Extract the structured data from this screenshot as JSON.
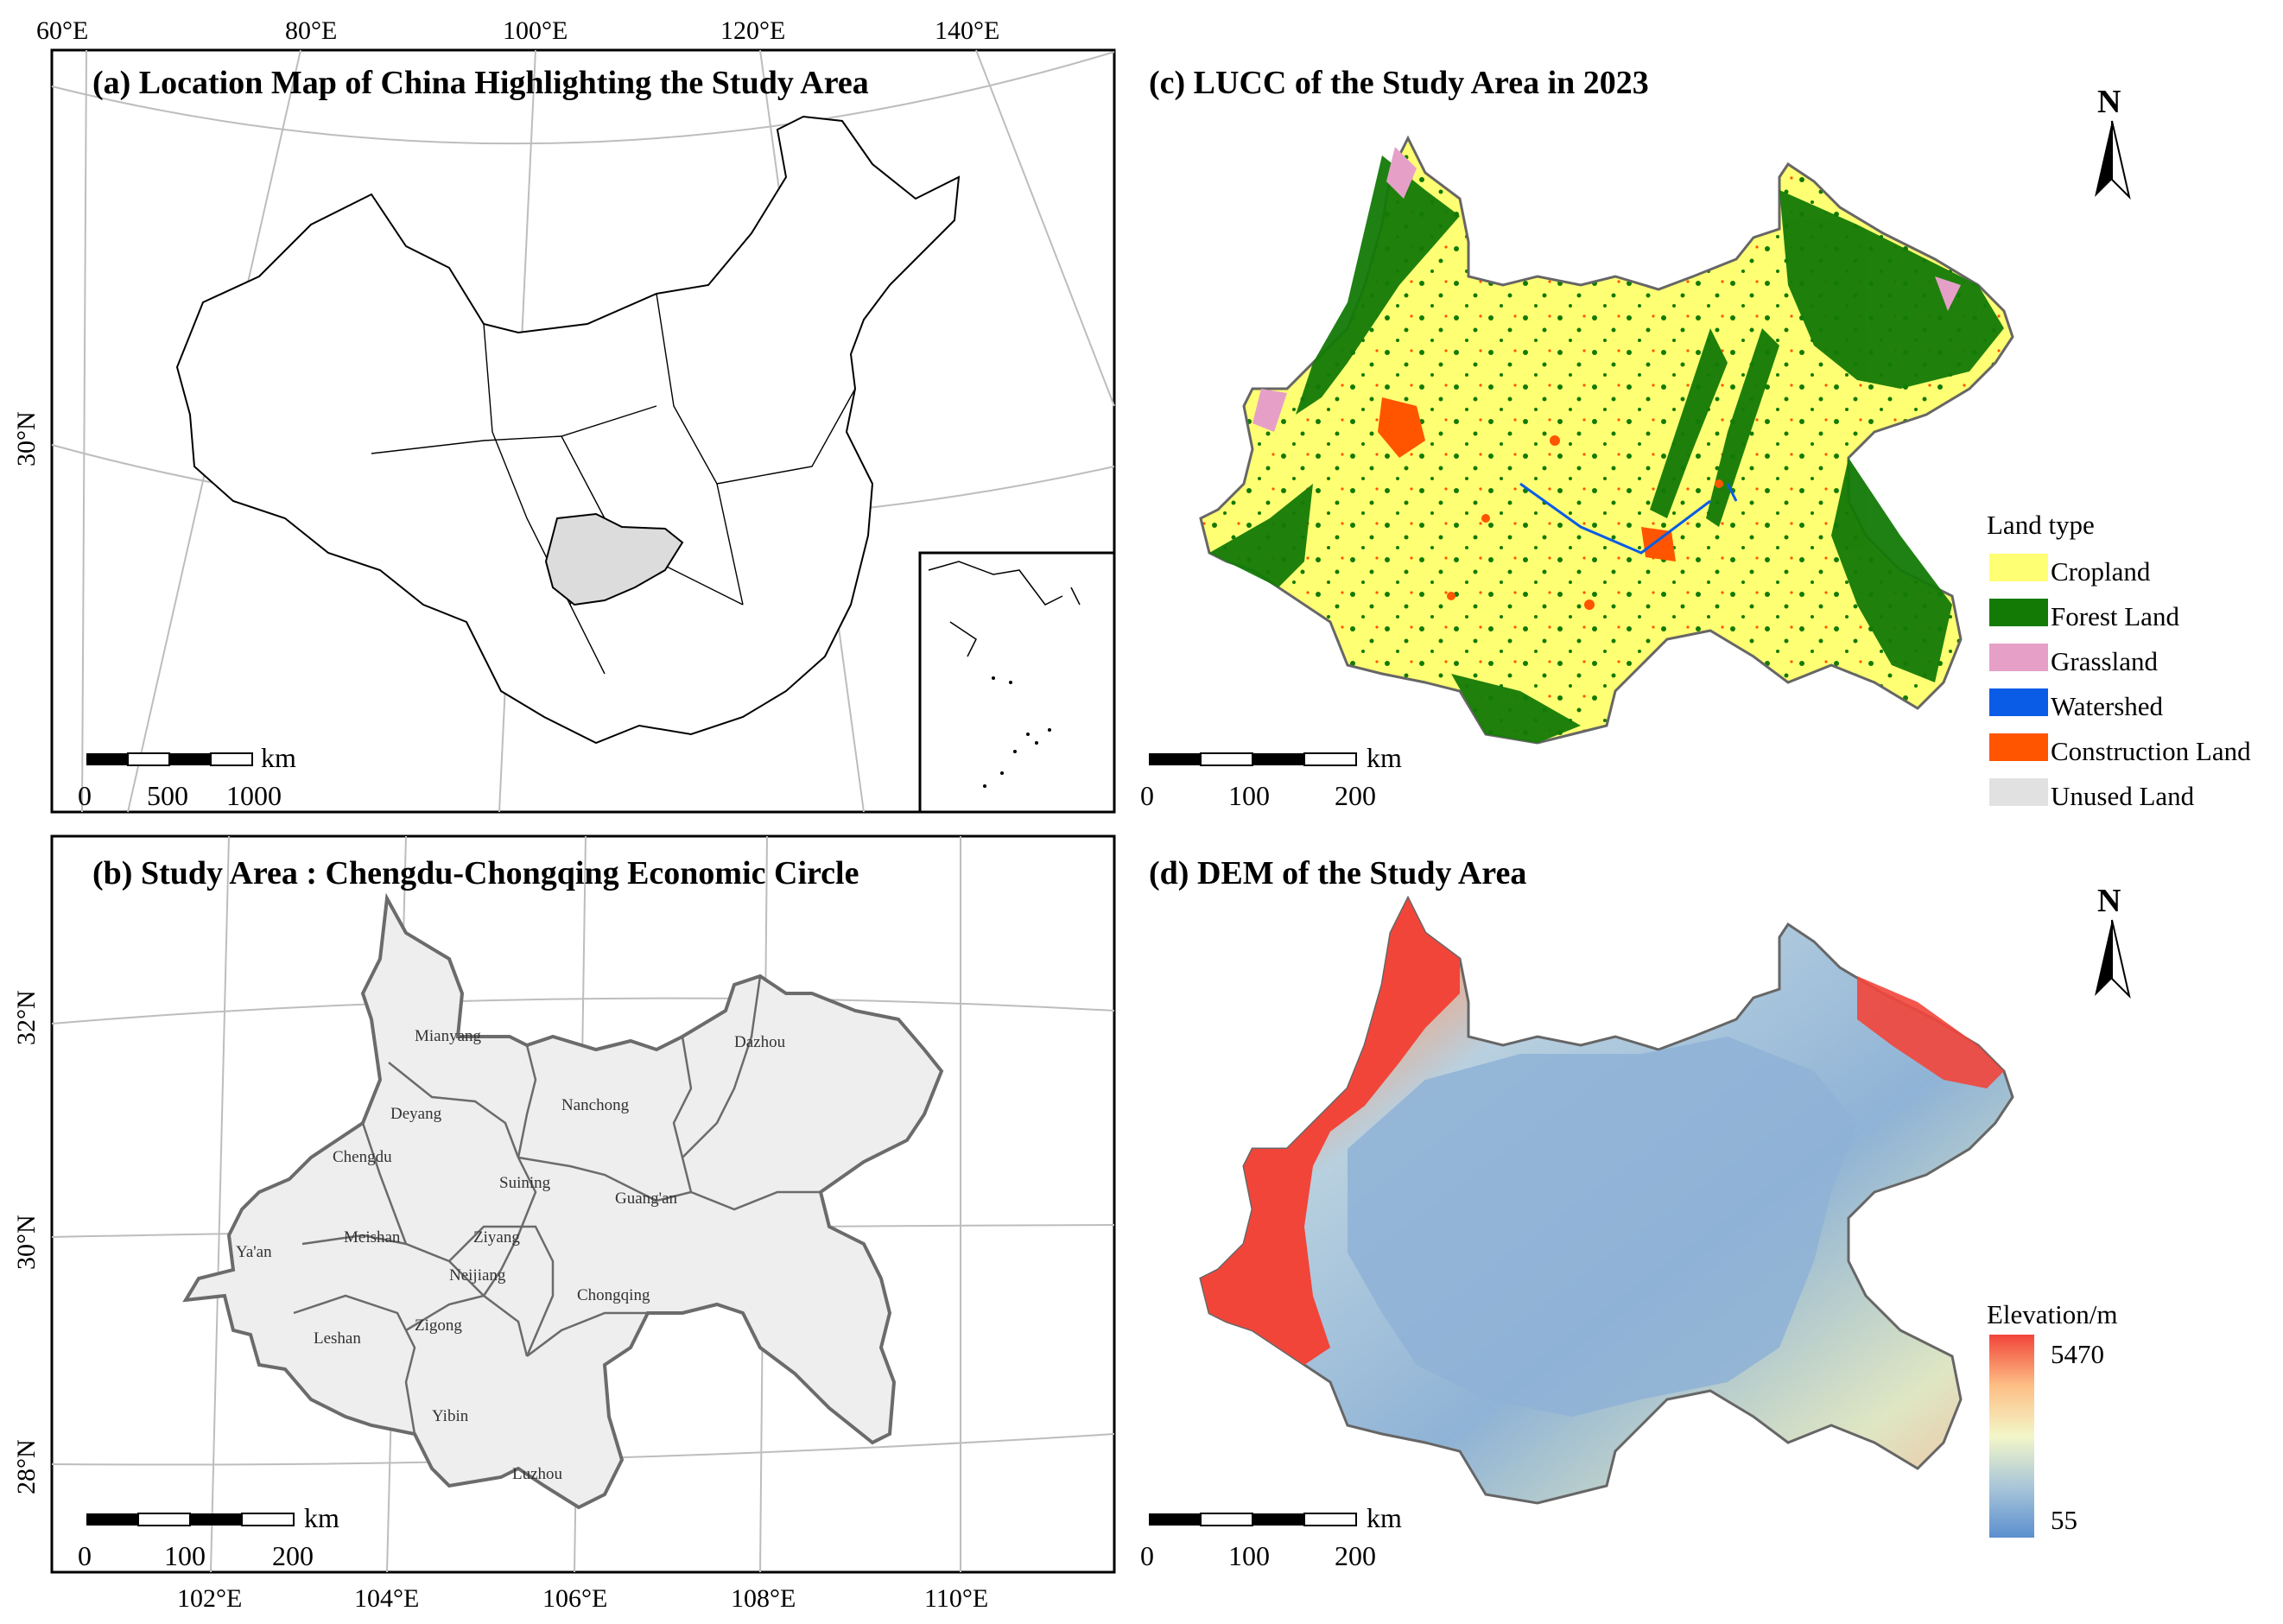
{
  "panels": {
    "a": {
      "title": "(a) Location Map of China Highlighting the Study Area",
      "lon_ticks": [
        "60°E",
        "80°E",
        "100°E",
        "120°E",
        "140°E"
      ],
      "lat_ticks": [
        "30°N"
      ],
      "scale_unit": "km",
      "scale_labels": [
        "0",
        "500",
        "1000"
      ]
    },
    "b": {
      "title": "(b) Study Area : Chengdu-Chongqing Economic Circle",
      "lon_ticks": [
        "102°E",
        "104°E",
        "106°E",
        "108°E",
        "110°E"
      ],
      "lat_ticks": [
        "32°N",
        "30°N",
        "28°N"
      ],
      "scale_unit": "km",
      "scale_labels": [
        "0",
        "100",
        "200"
      ],
      "cities": [
        "Mianyang",
        "Dazhou",
        "Nanchong",
        "Deyang",
        "Chengdu",
        "Suining",
        "Guang'an",
        "Ya'an",
        "Meishan",
        "Ziyang",
        "Neijiang",
        "Chongqing",
        "Leshan",
        "Zigong",
        "Yibin",
        "Luzhou"
      ]
    },
    "c": {
      "title": "(c) LUCC of the Study Area in 2023",
      "north": "N",
      "scale_unit": "km",
      "scale_labels": [
        "0",
        "100",
        "200"
      ],
      "legend_title": "Land type",
      "legend_items": [
        {
          "label": "Cropland",
          "color": "#ffff73"
        },
        {
          "label": "Forest Land",
          "color": "#137a06"
        },
        {
          "label": "Grassland",
          "color": "#e6a0c8"
        },
        {
          "label": "Watershed",
          "color": "#0a5ce6"
        },
        {
          "label": "Construction Land",
          "color": "#ff5500"
        },
        {
          "label": "Unused Land",
          "color": "#e1e1e1"
        }
      ]
    },
    "d": {
      "title": "(d) DEM of the Study Area",
      "north": "N",
      "scale_unit": "km",
      "scale_labels": [
        "0",
        "100",
        "200"
      ],
      "legend_title": "Elevation/m",
      "legend_max": "5470",
      "legend_min": "55",
      "ramp": [
        "#f2453a",
        "#fdbe85",
        "#f3f6c8",
        "#a9c6d9",
        "#5b8fcf"
      ]
    }
  }
}
